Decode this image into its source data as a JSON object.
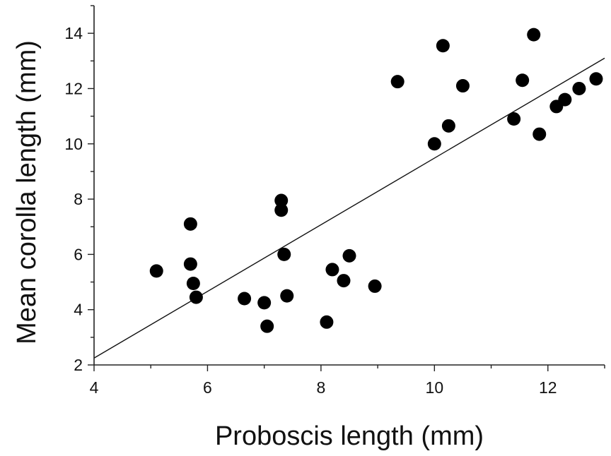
{
  "chart_data": {
    "type": "scatter",
    "title": "",
    "xlabel": "Proboscis length (mm)",
    "ylabel": "Mean corolla length (mm)",
    "xlim": [
      4,
      13
    ],
    "ylim": [
      2,
      15
    ],
    "x_ticks": [
      "4",
      "6",
      "8",
      "10",
      "12"
    ],
    "y_ticks": [
      "2",
      "4",
      "6",
      "8",
      "10",
      "12",
      "14"
    ],
    "grid": false,
    "legend": "none",
    "point_color": "#000000",
    "points": [
      {
        "x": 5.1,
        "y": 5.4
      },
      {
        "x": 5.7,
        "y": 7.1
      },
      {
        "x": 5.7,
        "y": 5.65
      },
      {
        "x": 5.75,
        "y": 4.95
      },
      {
        "x": 5.8,
        "y": 4.45
      },
      {
        "x": 6.65,
        "y": 4.4
      },
      {
        "x": 7.0,
        "y": 4.25
      },
      {
        "x": 7.05,
        "y": 3.4
      },
      {
        "x": 7.3,
        "y": 7.95
      },
      {
        "x": 7.3,
        "y": 7.6
      },
      {
        "x": 7.35,
        "y": 6.0
      },
      {
        "x": 7.4,
        "y": 4.5
      },
      {
        "x": 8.1,
        "y": 3.55
      },
      {
        "x": 8.2,
        "y": 5.45
      },
      {
        "x": 8.4,
        "y": 5.05
      },
      {
        "x": 8.5,
        "y": 5.95
      },
      {
        "x": 8.95,
        "y": 4.85
      },
      {
        "x": 9.35,
        "y": 12.25
      },
      {
        "x": 10.0,
        "y": 10.0
      },
      {
        "x": 10.15,
        "y": 13.55
      },
      {
        "x": 10.25,
        "y": 10.65
      },
      {
        "x": 10.5,
        "y": 12.1
      },
      {
        "x": 11.4,
        "y": 10.9
      },
      {
        "x": 11.55,
        "y": 12.3
      },
      {
        "x": 11.75,
        "y": 13.95
      },
      {
        "x": 11.85,
        "y": 10.35
      },
      {
        "x": 12.15,
        "y": 11.35
      },
      {
        "x": 12.3,
        "y": 11.6
      },
      {
        "x": 12.55,
        "y": 12.0
      },
      {
        "x": 12.85,
        "y": 12.35
      }
    ],
    "fit_line": {
      "x": [
        4,
        13
      ],
      "y": [
        2.25,
        13.1
      ]
    }
  }
}
